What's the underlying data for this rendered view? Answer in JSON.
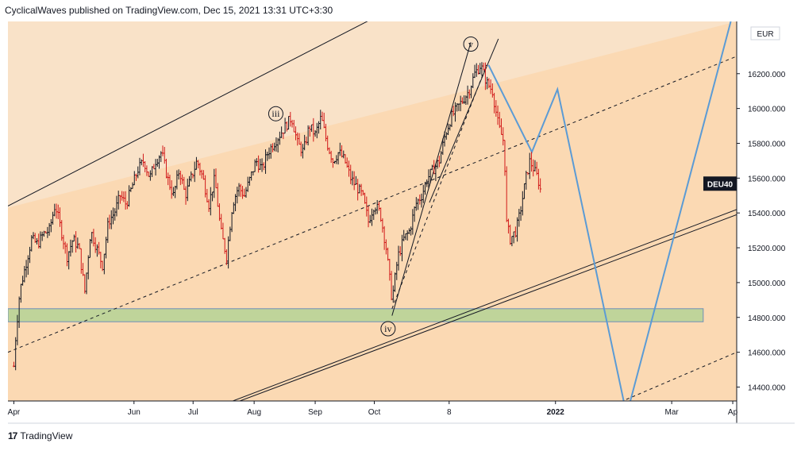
{
  "header": {
    "publisher_line": "CyclicalWaves published on TradingView.com, Dec 15, 2021 13:31 UTC+3:30"
  },
  "footer": {
    "brand": "TradingView"
  },
  "chart_data": {
    "type": "candlestick",
    "currency": "EUR",
    "symbol_label": "DEU40",
    "last_price": 15500,
    "y_ticks": [
      14400,
      14600,
      14800,
      15000,
      15200,
      15400,
      15600,
      15800,
      16000,
      16200
    ],
    "y_tick_labels": [
      "14400.000",
      "14600.000",
      "14800.000",
      "15000.000",
      "15200.000",
      "15400.000",
      "15600.000",
      "15800.000",
      "16000.000",
      "16200.000"
    ],
    "ylim": [
      14320,
      16500
    ],
    "x_ticks": [
      {
        "day": 0,
        "label": "Apr",
        "bold": false
      },
      {
        "day": 61,
        "label": "Jun",
        "bold": false
      },
      {
        "day": 91,
        "label": "Jul",
        "bold": false
      },
      {
        "day": 122,
        "label": "Aug",
        "bold": false
      },
      {
        "day": 153,
        "label": "Sep",
        "bold": false
      },
      {
        "day": 183,
        "label": "Oct",
        "bold": false
      },
      {
        "day": 221,
        "label": "8",
        "bold": false
      },
      {
        "day": 275,
        "label": "2022",
        "bold": true
      },
      {
        "day": 334,
        "label": "Mar",
        "bold": false
      },
      {
        "day": 365,
        "label": "Ap",
        "bold": false
      }
    ],
    "xlim": [
      -3,
      367
    ],
    "price_path": [
      [
        0,
        14520
      ],
      [
        1,
        14700
      ],
      [
        3,
        14950
      ],
      [
        6,
        15100
      ],
      [
        9,
        15250
      ],
      [
        12,
        15220
      ],
      [
        15,
        15280
      ],
      [
        18,
        15300
      ],
      [
        21,
        15450
      ],
      [
        24,
        15300
      ],
      [
        27,
        15150
      ],
      [
        30,
        15250
      ],
      [
        33,
        15200
      ],
      [
        36,
        14950
      ],
      [
        39,
        15300
      ],
      [
        42,
        15200
      ],
      [
        45,
        15100
      ],
      [
        48,
        15350
      ],
      [
        51,
        15400
      ],
      [
        54,
        15500
      ],
      [
        57,
        15450
      ],
      [
        60,
        15550
      ],
      [
        63,
        15650
      ],
      [
        66,
        15700
      ],
      [
        69,
        15600
      ],
      [
        72,
        15700
      ],
      [
        75,
        15750
      ],
      [
        78,
        15600
      ],
      [
        81,
        15500
      ],
      [
        84,
        15650
      ],
      [
        87,
        15500
      ],
      [
        90,
        15600
      ],
      [
        93,
        15700
      ],
      [
        96,
        15600
      ],
      [
        99,
        15450
      ],
      [
        102,
        15600
      ],
      [
        105,
        15300
      ],
      [
        108,
        15150
      ],
      [
        111,
        15450
      ],
      [
        114,
        15550
      ],
      [
        117,
        15500
      ],
      [
        120,
        15600
      ],
      [
        123,
        15700
      ],
      [
        126,
        15650
      ],
      [
        129,
        15750
      ],
      [
        132,
        15800
      ],
      [
        135,
        15850
      ],
      [
        138,
        15900
      ],
      [
        141,
        15950
      ],
      [
        144,
        15800
      ],
      [
        147,
        15750
      ],
      [
        150,
        15900
      ],
      [
        153,
        15850
      ],
      [
        156,
        15950
      ],
      [
        159,
        15800
      ],
      [
        162,
        15700
      ],
      [
        165,
        15750
      ],
      [
        168,
        15700
      ],
      [
        171,
        15600
      ],
      [
        174,
        15550
      ],
      [
        177,
        15500
      ],
      [
        180,
        15350
      ],
      [
        183,
        15450
      ],
      [
        186,
        15400
      ],
      [
        189,
        15200
      ],
      [
        192,
        14900
      ],
      [
        195,
        15150
      ],
      [
        198,
        15250
      ],
      [
        201,
        15300
      ],
      [
        204,
        15450
      ],
      [
        207,
        15500
      ],
      [
        210,
        15600
      ],
      [
        213,
        15650
      ],
      [
        216,
        15700
      ],
      [
        219,
        15850
      ],
      [
        222,
        15950
      ],
      [
        225,
        16000
      ],
      [
        228,
        16050
      ],
      [
        231,
        16100
      ],
      [
        234,
        16200
      ],
      [
        237,
        16250
      ],
      [
        240,
        16150
      ],
      [
        243,
        16100
      ],
      [
        246,
        15900
      ],
      [
        249,
        15800
      ],
      [
        250,
        15350
      ],
      [
        252,
        15250
      ],
      [
        255,
        15300
      ],
      [
        257,
        15400
      ],
      [
        260,
        15600
      ],
      [
        262,
        15700
      ],
      [
        264,
        15650
      ],
      [
        266,
        15600
      ],
      [
        268,
        15500
      ]
    ],
    "annotations": [
      {
        "label": "iii",
        "day": 133,
        "price": 15970
      },
      {
        "label": "iv",
        "day": 190,
        "price": 14735
      },
      {
        "label": "v",
        "day": 232,
        "price": 16370
      }
    ],
    "support_zone": {
      "price_top": 14850,
      "price_bottom": 14775,
      "day_start": -3,
      "day_end": 350
    }
  }
}
